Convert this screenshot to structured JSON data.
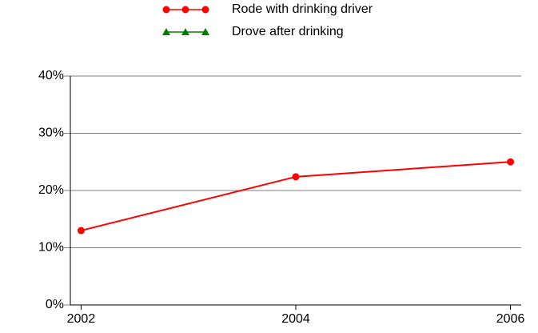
{
  "chart_data": {
    "type": "line",
    "x": [
      2002,
      2004,
      2006
    ],
    "series": [
      {
        "name": "Rode with drinking driver",
        "color": "#ff0000",
        "marker": "circle",
        "values": [
          13,
          22.4,
          25
        ]
      },
      {
        "name": "Drove after drinking",
        "color": "#008000",
        "marker": "triangle",
        "values": [
          null,
          null,
          null
        ]
      }
    ],
    "xlim": [
      2001.9,
      2006.1
    ],
    "xticks": [
      2002,
      2004,
      2006
    ],
    "ylim": [
      0,
      40
    ],
    "yticks": [
      {
        "value": 0,
        "label": "0%"
      },
      {
        "value": 10,
        "label": "10%"
      },
      {
        "value": 20,
        "label": "20%"
      },
      {
        "value": 30,
        "label": "30%"
      },
      {
        "value": 40,
        "label": "40%"
      }
    ],
    "grid": true,
    "legend": "top"
  }
}
